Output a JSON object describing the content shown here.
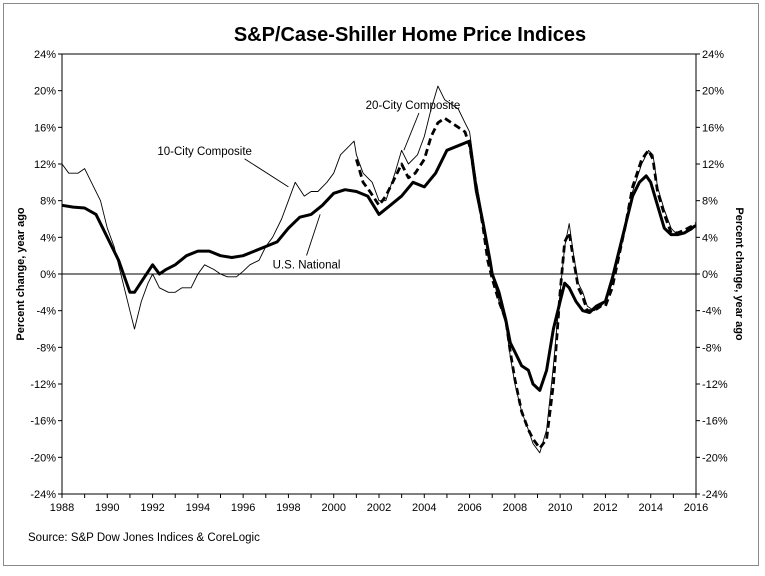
{
  "chart_data": {
    "type": "line",
    "title": "S&P/Case-Shiller Home Price Indices",
    "ylabel_left": "Percent change, year ago",
    "ylabel_right": "Percent change, year ago",
    "source": "Source: S&P Dow Jones Indices & CoreLogic",
    "xlim": [
      1988,
      2016
    ],
    "ylim": [
      -24,
      24
    ],
    "x_ticks": [
      1988,
      1990,
      1992,
      1994,
      1996,
      1998,
      2000,
      2002,
      2004,
      2006,
      2008,
      2010,
      2012,
      2014,
      2016
    ],
    "y_ticks": [
      -24,
      -20,
      -16,
      -12,
      -8,
      -4,
      0,
      4,
      8,
      12,
      16,
      20,
      24
    ],
    "y_tick_labels": [
      "-24%",
      "-20%",
      "-16%",
      "-12%",
      "-8%",
      "-4%",
      "0%",
      "4%",
      "8%",
      "12%",
      "16%",
      "20%",
      "24%"
    ],
    "series": [
      {
        "name": "10-City Composite",
        "style": "thin",
        "color": "#000000",
        "points": [
          [
            1988.0,
            12.0
          ],
          [
            1988.3,
            11.0
          ],
          [
            1988.7,
            11.0
          ],
          [
            1989.0,
            11.5
          ],
          [
            1989.3,
            10.0
          ],
          [
            1989.7,
            8.0
          ],
          [
            1990.0,
            5.0
          ],
          [
            1990.3,
            3.0
          ],
          [
            1990.7,
            -1.0
          ],
          [
            1991.0,
            -4.0
          ],
          [
            1991.2,
            -6.0
          ],
          [
            1991.5,
            -3.0
          ],
          [
            1991.8,
            -1.0
          ],
          [
            1992.0,
            0.0
          ],
          [
            1992.3,
            -1.5
          ],
          [
            1992.7,
            -2.0
          ],
          [
            1993.0,
            -2.0
          ],
          [
            1993.3,
            -1.5
          ],
          [
            1993.7,
            -1.5
          ],
          [
            1994.0,
            0.0
          ],
          [
            1994.3,
            1.0
          ],
          [
            1994.7,
            0.5
          ],
          [
            1995.0,
            0.0
          ],
          [
            1995.3,
            -0.3
          ],
          [
            1995.7,
            -0.3
          ],
          [
            1996.0,
            0.3
          ],
          [
            1996.3,
            1.0
          ],
          [
            1996.7,
            1.5
          ],
          [
            1997.0,
            3.0
          ],
          [
            1997.3,
            4.0
          ],
          [
            1997.7,
            6.0
          ],
          [
            1998.0,
            8.0
          ],
          [
            1998.3,
            10.0
          ],
          [
            1998.7,
            8.5
          ],
          [
            1999.0,
            9.0
          ],
          [
            1999.3,
            9.0
          ],
          [
            1999.7,
            10.0
          ],
          [
            2000.0,
            11.0
          ],
          [
            2000.3,
            13.0
          ],
          [
            2000.7,
            14.0
          ],
          [
            2000.9,
            14.5
          ],
          [
            2001.0,
            13.0
          ],
          [
            2001.3,
            11.0
          ],
          [
            2001.7,
            10.0
          ],
          [
            2002.0,
            8.0
          ],
          [
            2002.3,
            8.0
          ],
          [
            2002.7,
            11.0
          ],
          [
            2003.0,
            13.5
          ],
          [
            2003.3,
            12.0
          ],
          [
            2003.7,
            13.0
          ],
          [
            2004.0,
            15.0
          ],
          [
            2004.3,
            18.0
          ],
          [
            2004.6,
            20.5
          ],
          [
            2004.9,
            19.0
          ],
          [
            2005.2,
            18.5
          ],
          [
            2005.5,
            18.0
          ],
          [
            2005.8,
            16.5
          ],
          [
            2006.0,
            15.5
          ],
          [
            2006.3,
            10.0
          ],
          [
            2006.6,
            6.0
          ],
          [
            2006.8,
            2.0
          ],
          [
            2007.0,
            0.0
          ],
          [
            2007.3,
            -3.0
          ],
          [
            2007.6,
            -5.5
          ],
          [
            2007.8,
            -9.0
          ],
          [
            2008.0,
            -12.0
          ],
          [
            2008.3,
            -15.0
          ],
          [
            2008.6,
            -17.0
          ],
          [
            2008.8,
            -18.5
          ],
          [
            2009.1,
            -19.5
          ],
          [
            2009.4,
            -17.0
          ],
          [
            2009.7,
            -10.0
          ],
          [
            2010.0,
            -2.0
          ],
          [
            2010.2,
            3.0
          ],
          [
            2010.4,
            5.5
          ],
          [
            2010.6,
            2.0
          ],
          [
            2010.8,
            -1.0
          ],
          [
            2011.0,
            -2.0
          ],
          [
            2011.2,
            -3.5
          ],
          [
            2011.5,
            -4.0
          ],
          [
            2011.8,
            -3.5
          ],
          [
            2012.0,
            -3.0
          ],
          [
            2012.3,
            -1.0
          ],
          [
            2012.6,
            2.0
          ],
          [
            2012.9,
            5.0
          ],
          [
            2013.2,
            9.0
          ],
          [
            2013.6,
            12.0
          ],
          [
            2013.9,
            13.5
          ],
          [
            2014.1,
            13.0
          ],
          [
            2014.3,
            9.5
          ],
          [
            2014.6,
            7.0
          ],
          [
            2014.9,
            5.0
          ],
          [
            2015.2,
            4.2
          ],
          [
            2015.5,
            4.4
          ],
          [
            2015.8,
            4.8
          ],
          [
            2016.0,
            5.2
          ]
        ]
      },
      {
        "name": "20-City Composite",
        "style": "dashed",
        "color": "#000000",
        "points": [
          [
            2001.0,
            12.5
          ],
          [
            2001.3,
            10.0
          ],
          [
            2001.6,
            9.0
          ],
          [
            2002.0,
            7.5
          ],
          [
            2002.3,
            8.5
          ],
          [
            2002.7,
            10.5
          ],
          [
            2003.0,
            12.0
          ],
          [
            2003.3,
            10.5
          ],
          [
            2003.6,
            11.0
          ],
          [
            2004.0,
            12.5
          ],
          [
            2004.3,
            15.0
          ],
          [
            2004.6,
            16.5
          ],
          [
            2004.9,
            17.0
          ],
          [
            2005.2,
            16.5
          ],
          [
            2005.5,
            16.0
          ],
          [
            2005.8,
            15.5
          ],
          [
            2006.0,
            14.0
          ],
          [
            2006.3,
            9.5
          ],
          [
            2006.6,
            5.0
          ],
          [
            2006.8,
            1.5
          ],
          [
            2007.0,
            -0.5
          ],
          [
            2007.3,
            -3.0
          ],
          [
            2007.6,
            -5.0
          ],
          [
            2007.8,
            -8.5
          ],
          [
            2008.0,
            -11.5
          ],
          [
            2008.3,
            -15.0
          ],
          [
            2008.6,
            -17.0
          ],
          [
            2008.8,
            -18.0
          ],
          [
            2009.1,
            -19.0
          ],
          [
            2009.4,
            -18.0
          ],
          [
            2009.7,
            -12.0
          ],
          [
            2010.0,
            -2.0
          ],
          [
            2010.2,
            3.5
          ],
          [
            2010.4,
            4.5
          ],
          [
            2010.6,
            1.5
          ],
          [
            2010.8,
            -1.5
          ],
          [
            2011.0,
            -2.5
          ],
          [
            2011.2,
            -4.0
          ],
          [
            2011.5,
            -4.0
          ],
          [
            2011.8,
            -3.5
          ],
          [
            2012.0,
            -3.5
          ],
          [
            2012.3,
            -1.5
          ],
          [
            2012.6,
            2.0
          ],
          [
            2012.9,
            5.5
          ],
          [
            2013.2,
            9.5
          ],
          [
            2013.6,
            12.5
          ],
          [
            2013.9,
            13.5
          ],
          [
            2014.1,
            12.5
          ],
          [
            2014.3,
            9.0
          ],
          [
            2014.6,
            6.5
          ],
          [
            2014.9,
            4.5
          ],
          [
            2015.2,
            4.5
          ],
          [
            2015.5,
            4.8
          ],
          [
            2015.8,
            5.2
          ],
          [
            2016.0,
            5.5
          ]
        ]
      },
      {
        "name": "U.S. National",
        "style": "thick",
        "color": "#000000",
        "points": [
          [
            1988.0,
            7.5
          ],
          [
            1988.5,
            7.3
          ],
          [
            1989.0,
            7.2
          ],
          [
            1989.5,
            6.5
          ],
          [
            1990.0,
            4.0
          ],
          [
            1990.5,
            1.5
          ],
          [
            1991.0,
            -2.0
          ],
          [
            1991.2,
            -2.0
          ],
          [
            1991.6,
            -0.5
          ],
          [
            1992.0,
            1.0
          ],
          [
            1992.3,
            0.0
          ],
          [
            1992.6,
            0.5
          ],
          [
            1993.0,
            1.0
          ],
          [
            1993.5,
            2.0
          ],
          [
            1994.0,
            2.5
          ],
          [
            1994.5,
            2.5
          ],
          [
            1995.0,
            2.0
          ],
          [
            1995.5,
            1.8
          ],
          [
            1996.0,
            2.0
          ],
          [
            1996.5,
            2.5
          ],
          [
            1997.0,
            3.0
          ],
          [
            1997.5,
            3.5
          ],
          [
            1998.0,
            5.0
          ],
          [
            1998.5,
            6.2
          ],
          [
            1999.0,
            6.5
          ],
          [
            1999.5,
            7.5
          ],
          [
            2000.0,
            8.8
          ],
          [
            2000.5,
            9.2
          ],
          [
            2001.0,
            9.0
          ],
          [
            2001.5,
            8.5
          ],
          [
            2002.0,
            6.5
          ],
          [
            2002.5,
            7.5
          ],
          [
            2003.0,
            8.5
          ],
          [
            2003.5,
            10.0
          ],
          [
            2004.0,
            9.5
          ],
          [
            2004.5,
            11.0
          ],
          [
            2005.0,
            13.5
          ],
          [
            2005.5,
            14.0
          ],
          [
            2006.0,
            14.5
          ],
          [
            2006.3,
            9.0
          ],
          [
            2006.6,
            5.5
          ],
          [
            2006.9,
            1.5
          ],
          [
            2007.0,
            0.0
          ],
          [
            2007.3,
            -2.0
          ],
          [
            2007.6,
            -5.0
          ],
          [
            2007.8,
            -7.5
          ],
          [
            2008.0,
            -8.5
          ],
          [
            2008.3,
            -10.0
          ],
          [
            2008.6,
            -10.5
          ],
          [
            2008.8,
            -12.0
          ],
          [
            2009.1,
            -12.7
          ],
          [
            2009.4,
            -10.5
          ],
          [
            2009.7,
            -6.0
          ],
          [
            2010.0,
            -3.0
          ],
          [
            2010.2,
            -1.0
          ],
          [
            2010.4,
            -1.5
          ],
          [
            2010.7,
            -3.0
          ],
          [
            2011.0,
            -4.0
          ],
          [
            2011.3,
            -4.2
          ],
          [
            2011.6,
            -3.5
          ],
          [
            2012.0,
            -3.0
          ],
          [
            2012.3,
            -0.5
          ],
          [
            2012.6,
            2.5
          ],
          [
            2012.9,
            5.5
          ],
          [
            2013.2,
            8.5
          ],
          [
            2013.5,
            10.0
          ],
          [
            2013.8,
            10.7
          ],
          [
            2014.0,
            10.0
          ],
          [
            2014.3,
            7.5
          ],
          [
            2014.6,
            5.0
          ],
          [
            2014.9,
            4.3
          ],
          [
            2015.2,
            4.3
          ],
          [
            2015.5,
            4.5
          ],
          [
            2015.8,
            5.0
          ],
          [
            2016.0,
            5.3
          ]
        ]
      }
    ],
    "annotations": [
      {
        "text": "20-City Composite",
        "x": 2003.5,
        "y": 18.0,
        "pointer_to": [
          2003.1,
          13.5
        ]
      },
      {
        "text": "10-City Composite",
        "x": 1994.3,
        "y": 13.0,
        "pointer_to": [
          1998.0,
          9.5
        ]
      },
      {
        "text": "U.S. National",
        "x": 1998.8,
        "y": 0.6,
        "pointer_to": [
          1999.4,
          6.5
        ]
      }
    ]
  }
}
